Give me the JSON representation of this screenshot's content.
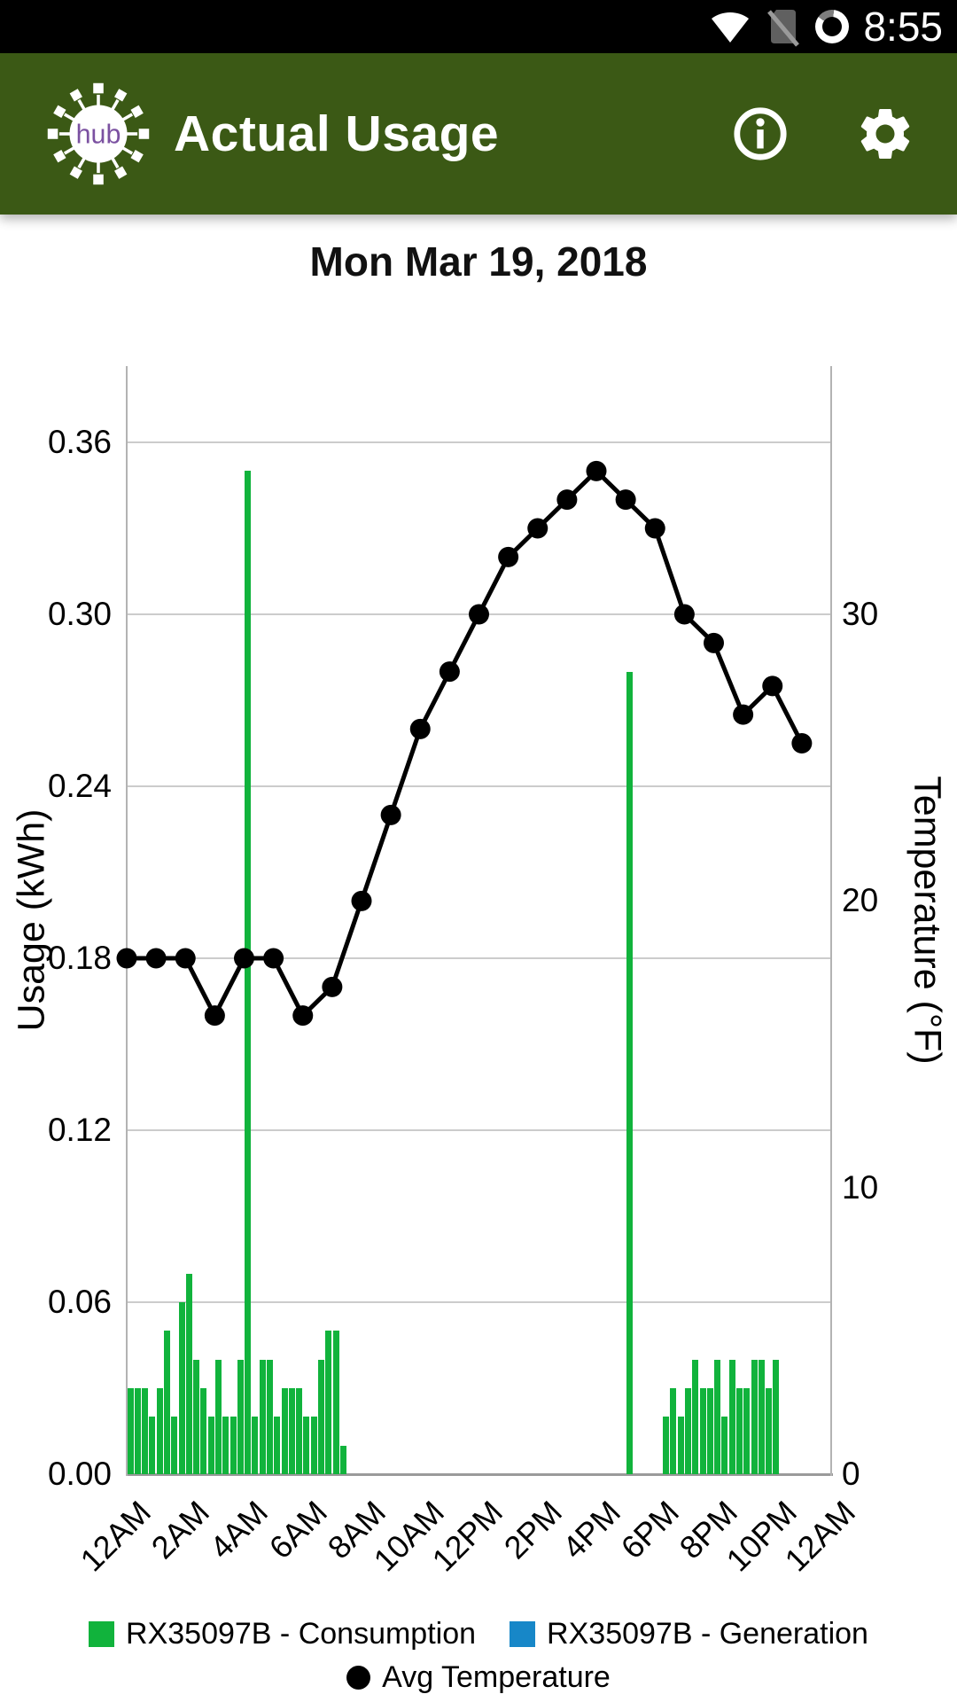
{
  "status_bar": {
    "time": "8:55"
  },
  "app_bar": {
    "title": "Actual Usage",
    "logo_text": "hub",
    "colors": {
      "background": "#3B5915",
      "logo_text": "#7B51A1"
    }
  },
  "date_title": "Mon Mar 19, 2018",
  "chart_data": {
    "type": "combo: 15-minute bars (usage kWh) + hourly line (temperature F), dual y-axes",
    "title": "Mon Mar 19, 2018",
    "grid": true,
    "legend_position": "bottom",
    "x_axis": {
      "hours_span": 24,
      "bar_interval_minutes": 15,
      "tick_labels": [
        "12AM",
        "2AM",
        "4AM",
        "6AM",
        "8AM",
        "10AM",
        "12PM",
        "2PM",
        "4PM",
        "6PM",
        "8PM",
        "10PM",
        "12AM"
      ]
    },
    "y_left": {
      "label": "Usage (kWh)",
      "range": [
        0,
        0.36
      ],
      "ticks": [
        "0.00",
        "0.06",
        "0.12",
        "0.18",
        "0.24",
        "0.30",
        "0.36"
      ]
    },
    "y_right": {
      "label": "Temperature (°F)",
      "range": [
        0,
        36
      ],
      "ticks": [
        "0",
        "10",
        "20",
        "30"
      ]
    },
    "series": [
      {
        "name": "RX35097B - Consumption",
        "type": "bar",
        "color": "#11B33C",
        "note": "each point = [15-min slot index 0-95 from midnight, kWh]",
        "points": [
          [
            0,
            0.03
          ],
          [
            1,
            0.03
          ],
          [
            2,
            0.03
          ],
          [
            3,
            0.02
          ],
          [
            4,
            0.03
          ],
          [
            5,
            0.05
          ],
          [
            6,
            0.02
          ],
          [
            7,
            0.06
          ],
          [
            8,
            0.07
          ],
          [
            9,
            0.04
          ],
          [
            10,
            0.03
          ],
          [
            11,
            0.02
          ],
          [
            12,
            0.04
          ],
          [
            13,
            0.02
          ],
          [
            14,
            0.02
          ],
          [
            15,
            0.04
          ],
          [
            16,
            0.35
          ],
          [
            17,
            0.02
          ],
          [
            18,
            0.04
          ],
          [
            19,
            0.04
          ],
          [
            20,
            0.02
          ],
          [
            21,
            0.03
          ],
          [
            22,
            0.03
          ],
          [
            23,
            0.03
          ],
          [
            24,
            0.02
          ],
          [
            25,
            0.02
          ],
          [
            26,
            0.04
          ],
          [
            27,
            0.05
          ],
          [
            28,
            0.05
          ],
          [
            29,
            0.01
          ],
          [
            68,
            0.28
          ],
          [
            73,
            0.02
          ],
          [
            74,
            0.03
          ],
          [
            75,
            0.02
          ],
          [
            76,
            0.03
          ],
          [
            77,
            0.04
          ],
          [
            78,
            0.03
          ],
          [
            79,
            0.03
          ],
          [
            80,
            0.04
          ],
          [
            81,
            0.02
          ],
          [
            82,
            0.04
          ],
          [
            83,
            0.03
          ],
          [
            84,
            0.03
          ],
          [
            85,
            0.04
          ],
          [
            86,
            0.04
          ],
          [
            87,
            0.03
          ],
          [
            88,
            0.04
          ]
        ]
      },
      {
        "name": "RX35097B - Generation",
        "type": "bar",
        "color": "#1787C8",
        "points": []
      },
      {
        "name": "Avg Temperature",
        "type": "line",
        "color": "#000000",
        "x_hours": [
          0,
          1,
          2,
          3,
          4,
          5,
          6,
          7,
          8,
          9,
          10,
          11,
          12,
          13,
          14,
          15,
          16,
          17,
          18,
          19,
          20,
          21,
          22,
          23
        ],
        "values_f": [
          18,
          18,
          18,
          16,
          18,
          18,
          16,
          17,
          20,
          23,
          26,
          28,
          30,
          32,
          33,
          34,
          35,
          34,
          33,
          30,
          29,
          26.5,
          27.5,
          25.5
        ]
      }
    ]
  }
}
